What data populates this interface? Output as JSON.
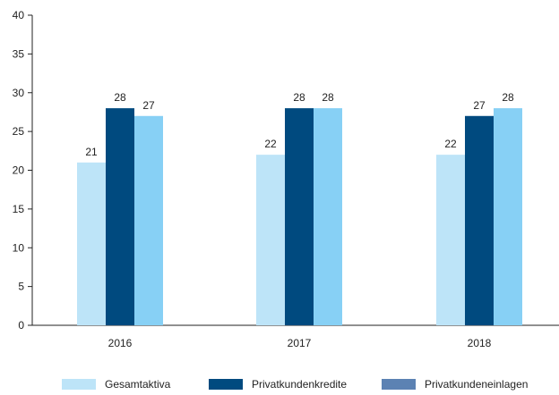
{
  "chart_data": {
    "type": "bar",
    "categories": [
      "2016",
      "2017",
      "2018"
    ],
    "series": [
      {
        "name": "Gesamtaktiva",
        "values": [
          21,
          22,
          22
        ],
        "color": "#bde4f8",
        "legend_color": "#bde4f8"
      },
      {
        "name": "Privatkundenkredite",
        "values": [
          28,
          28,
          27
        ],
        "color": "#004a7f",
        "legend_color": "#004a7f"
      },
      {
        "name": "Privatkundeneinlagen",
        "values": [
          27,
          28,
          28
        ],
        "color": "#87d0f5",
        "legend_color": "#5c82b3"
      }
    ],
    "ylim": [
      0,
      40
    ],
    "yticks": [
      0,
      5,
      10,
      15,
      20,
      25,
      30,
      35,
      40
    ],
    "grid": false,
    "legend_position": "bottom"
  }
}
